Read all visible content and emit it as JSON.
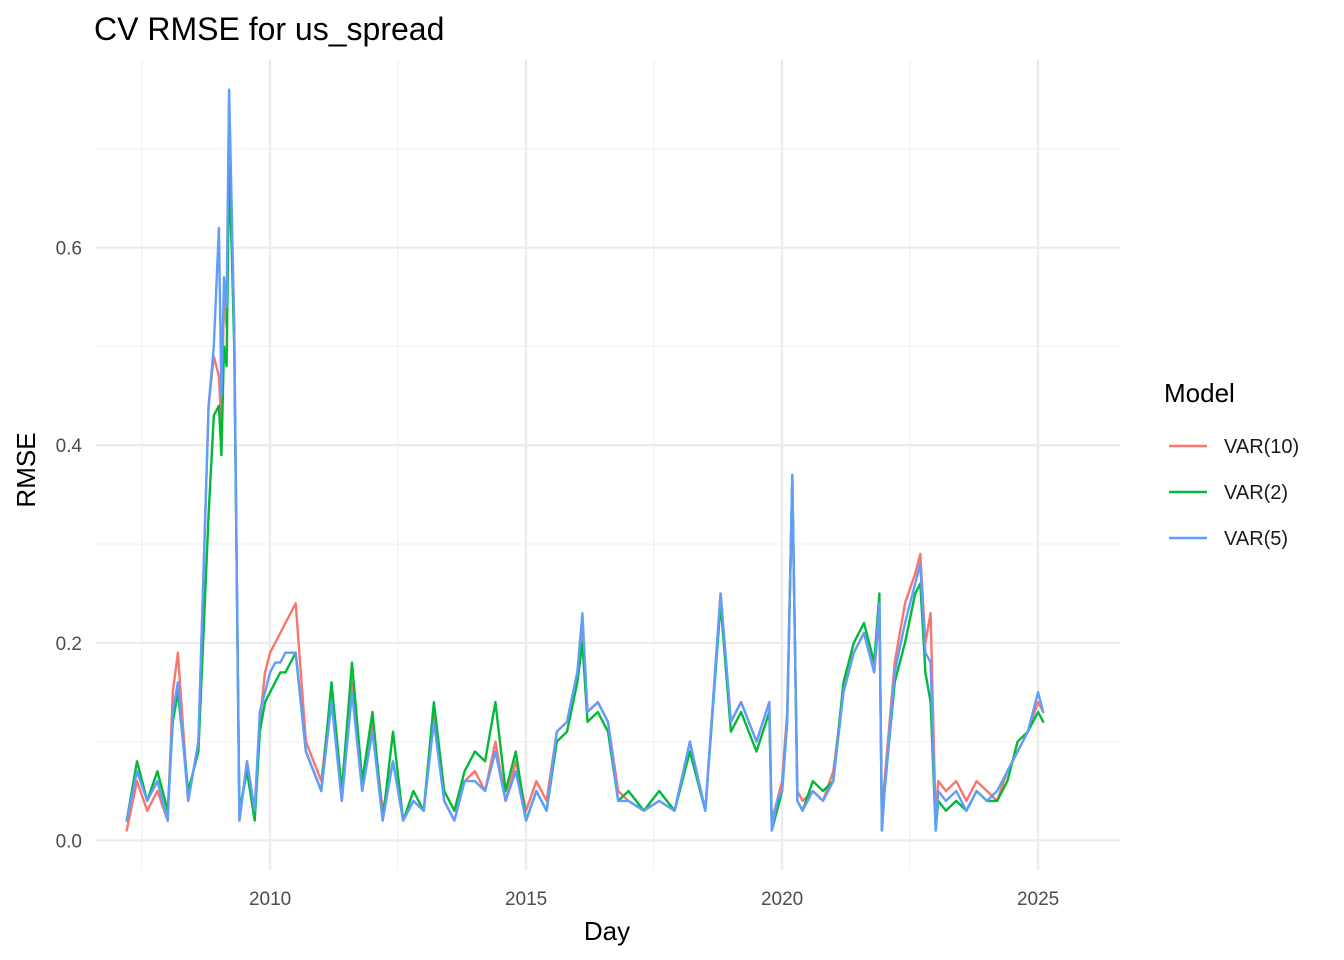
{
  "chart_data": {
    "type": "line",
    "title": "CV RMSE for us_spread",
    "xlabel": "Day",
    "ylabel": "RMSE",
    "xlim": [
      2006.6,
      2026.6
    ],
    "ylim": [
      -0.03,
      0.79
    ],
    "x_ticks": [
      {
        "value": 2010,
        "label": "2010"
      },
      {
        "value": 2015,
        "label": "2015"
      },
      {
        "value": 2020,
        "label": "2020"
      },
      {
        "value": 2025,
        "label": "2025"
      }
    ],
    "y_ticks": [
      {
        "value": 0.0,
        "label": "0.0"
      },
      {
        "value": 0.2,
        "label": "0.2"
      },
      {
        "value": 0.4,
        "label": "0.4"
      },
      {
        "value": 0.6,
        "label": "0.6"
      }
    ],
    "grid": true,
    "legend": {
      "title": "Model",
      "position": "right"
    },
    "series": [
      {
        "name": "VAR(10)",
        "color": "#F8766D",
        "x": [
          2007.2,
          2007.4,
          2007.6,
          2007.8,
          2008.0,
          2008.1,
          2008.2,
          2008.4,
          2008.6,
          2008.8,
          2008.9,
          2009.0,
          2009.05,
          2009.1,
          2009.15,
          2009.2,
          2009.25,
          2009.3,
          2009.4,
          2009.55,
          2009.7,
          2009.8,
          2009.9,
          2010.0,
          2010.1,
          2010.2,
          2010.3,
          2010.4,
          2010.5,
          2010.7,
          2011.0,
          2011.2,
          2011.4,
          2011.6,
          2011.8,
          2012.0,
          2012.2,
          2012.4,
          2012.6,
          2012.8,
          2013.0,
          2013.2,
          2013.4,
          2013.6,
          2013.8,
          2014.0,
          2014.2,
          2014.4,
          2014.6,
          2014.8,
          2015.0,
          2015.2,
          2015.4,
          2015.6,
          2015.8,
          2016.0,
          2016.1,
          2016.2,
          2016.4,
          2016.6,
          2016.8,
          2017.0,
          2017.3,
          2017.6,
          2017.9,
          2018.2,
          2018.5,
          2018.8,
          2019.0,
          2019.2,
          2019.5,
          2019.75,
          2019.8,
          2019.9,
          2020.0,
          2020.1,
          2020.2,
          2020.3,
          2020.4,
          2020.6,
          2020.8,
          2021.0,
          2021.2,
          2021.4,
          2021.6,
          2021.8,
          2021.9,
          2021.95,
          2022.0,
          2022.2,
          2022.4,
          2022.6,
          2022.7,
          2022.8,
          2022.9,
          2023.0,
          2023.05,
          2023.2,
          2023.4,
          2023.6,
          2023.8,
          2024.0,
          2024.2,
          2024.4,
          2024.6,
          2024.8,
          2025.0,
          2025.1
        ],
        "y": [
          0.01,
          0.06,
          0.03,
          0.05,
          0.02,
          0.15,
          0.19,
          0.04,
          0.1,
          0.44,
          0.49,
          0.47,
          0.42,
          0.55,
          0.52,
          0.75,
          0.62,
          0.52,
          0.02,
          0.08,
          0.03,
          0.12,
          0.17,
          0.19,
          0.2,
          0.21,
          0.22,
          0.23,
          0.24,
          0.1,
          0.06,
          0.15,
          0.04,
          0.16,
          0.05,
          0.12,
          0.03,
          0.08,
          0.02,
          0.04,
          0.03,
          0.13,
          0.04,
          0.02,
          0.06,
          0.07,
          0.05,
          0.1,
          0.04,
          0.08,
          0.03,
          0.06,
          0.04,
          0.11,
          0.12,
          0.17,
          0.21,
          0.13,
          0.14,
          0.12,
          0.05,
          0.04,
          0.03,
          0.04,
          0.03,
          0.1,
          0.03,
          0.25,
          0.12,
          0.14,
          0.1,
          0.14,
          0.02,
          0.04,
          0.06,
          0.13,
          0.36,
          0.05,
          0.04,
          0.05,
          0.04,
          0.07,
          0.15,
          0.19,
          0.21,
          0.17,
          0.23,
          0.02,
          0.06,
          0.18,
          0.24,
          0.27,
          0.29,
          0.2,
          0.23,
          0.02,
          0.06,
          0.05,
          0.06,
          0.04,
          0.06,
          0.05,
          0.04,
          0.07,
          0.09,
          0.11,
          0.14,
          0.13
        ]
      },
      {
        "name": "VAR(2)",
        "color": "#00BA38",
        "x": [
          2007.2,
          2007.4,
          2007.6,
          2007.8,
          2008.0,
          2008.1,
          2008.2,
          2008.4,
          2008.6,
          2008.8,
          2008.9,
          2009.0,
          2009.05,
          2009.1,
          2009.15,
          2009.2,
          2009.25,
          2009.3,
          2009.4,
          2009.55,
          2009.7,
          2009.8,
          2009.9,
          2010.0,
          2010.1,
          2010.2,
          2010.3,
          2010.4,
          2010.5,
          2010.7,
          2011.0,
          2011.2,
          2011.4,
          2011.6,
          2011.8,
          2012.0,
          2012.2,
          2012.4,
          2012.6,
          2012.8,
          2013.0,
          2013.2,
          2013.4,
          2013.6,
          2013.8,
          2014.0,
          2014.2,
          2014.4,
          2014.6,
          2014.8,
          2015.0,
          2015.2,
          2015.4,
          2015.6,
          2015.8,
          2016.0,
          2016.1,
          2016.2,
          2016.4,
          2016.6,
          2016.8,
          2017.0,
          2017.3,
          2017.6,
          2017.9,
          2018.2,
          2018.5,
          2018.8,
          2019.0,
          2019.2,
          2019.5,
          2019.75,
          2019.8,
          2019.9,
          2020.0,
          2020.1,
          2020.2,
          2020.3,
          2020.4,
          2020.6,
          2020.8,
          2021.0,
          2021.2,
          2021.4,
          2021.6,
          2021.8,
          2021.9,
          2021.95,
          2022.0,
          2022.2,
          2022.4,
          2022.6,
          2022.7,
          2022.8,
          2022.9,
          2023.0,
          2023.05,
          2023.2,
          2023.4,
          2023.6,
          2023.8,
          2024.0,
          2024.2,
          2024.4,
          2024.6,
          2024.8,
          2025.0,
          2025.1
        ],
        "y": [
          0.02,
          0.08,
          0.04,
          0.07,
          0.03,
          0.12,
          0.15,
          0.05,
          0.09,
          0.33,
          0.43,
          0.44,
          0.39,
          0.5,
          0.48,
          0.68,
          0.6,
          0.5,
          0.03,
          0.07,
          0.02,
          0.11,
          0.14,
          0.15,
          0.16,
          0.17,
          0.17,
          0.18,
          0.19,
          0.09,
          0.05,
          0.16,
          0.05,
          0.18,
          0.06,
          0.13,
          0.02,
          0.11,
          0.02,
          0.05,
          0.03,
          0.14,
          0.05,
          0.03,
          0.07,
          0.09,
          0.08,
          0.14,
          0.05,
          0.09,
          0.02,
          0.05,
          0.03,
          0.1,
          0.11,
          0.16,
          0.2,
          0.12,
          0.13,
          0.11,
          0.04,
          0.05,
          0.03,
          0.05,
          0.03,
          0.09,
          0.03,
          0.24,
          0.11,
          0.13,
          0.09,
          0.13,
          0.01,
          0.03,
          0.05,
          0.12,
          0.37,
          0.04,
          0.03,
          0.06,
          0.05,
          0.06,
          0.16,
          0.2,
          0.22,
          0.18,
          0.25,
          0.01,
          0.05,
          0.16,
          0.2,
          0.25,
          0.26,
          0.17,
          0.14,
          0.01,
          0.04,
          0.03,
          0.04,
          0.03,
          0.05,
          0.04,
          0.04,
          0.06,
          0.1,
          0.11,
          0.13,
          0.12
        ]
      },
      {
        "name": "VAR(5)",
        "color": "#619CFF",
        "x": [
          2007.2,
          2007.4,
          2007.6,
          2007.8,
          2008.0,
          2008.1,
          2008.2,
          2008.4,
          2008.6,
          2008.8,
          2008.9,
          2009.0,
          2009.05,
          2009.1,
          2009.15,
          2009.2,
          2009.25,
          2009.3,
          2009.4,
          2009.55,
          2009.7,
          2009.8,
          2009.9,
          2010.0,
          2010.1,
          2010.2,
          2010.3,
          2010.4,
          2010.5,
          2010.7,
          2011.0,
          2011.2,
          2011.4,
          2011.6,
          2011.8,
          2012.0,
          2012.2,
          2012.4,
          2012.6,
          2012.8,
          2013.0,
          2013.2,
          2013.4,
          2013.6,
          2013.8,
          2014.0,
          2014.2,
          2014.4,
          2014.6,
          2014.8,
          2015.0,
          2015.2,
          2015.4,
          2015.6,
          2015.8,
          2016.0,
          2016.1,
          2016.2,
          2016.4,
          2016.6,
          2016.8,
          2017.0,
          2017.3,
          2017.6,
          2017.9,
          2018.2,
          2018.5,
          2018.8,
          2019.0,
          2019.2,
          2019.5,
          2019.75,
          2019.8,
          2019.9,
          2020.0,
          2020.1,
          2020.2,
          2020.3,
          2020.4,
          2020.6,
          2020.8,
          2021.0,
          2021.2,
          2021.4,
          2021.6,
          2021.8,
          2021.9,
          2021.95,
          2022.0,
          2022.2,
          2022.4,
          2022.6,
          2022.7,
          2022.8,
          2022.9,
          2023.0,
          2023.05,
          2023.2,
          2023.4,
          2023.6,
          2023.8,
          2024.0,
          2024.2,
          2024.4,
          2024.6,
          2024.8,
          2025.0,
          2025.1
        ],
        "y": [
          0.02,
          0.07,
          0.04,
          0.06,
          0.02,
          0.13,
          0.16,
          0.04,
          0.1,
          0.44,
          0.5,
          0.62,
          0.45,
          0.57,
          0.54,
          0.76,
          0.64,
          0.52,
          0.02,
          0.08,
          0.03,
          0.13,
          0.15,
          0.17,
          0.18,
          0.18,
          0.19,
          0.19,
          0.19,
          0.09,
          0.05,
          0.14,
          0.04,
          0.15,
          0.05,
          0.11,
          0.02,
          0.08,
          0.02,
          0.04,
          0.03,
          0.12,
          0.04,
          0.02,
          0.06,
          0.06,
          0.05,
          0.09,
          0.04,
          0.07,
          0.02,
          0.05,
          0.03,
          0.11,
          0.12,
          0.17,
          0.23,
          0.13,
          0.14,
          0.12,
          0.04,
          0.04,
          0.03,
          0.04,
          0.03,
          0.1,
          0.03,
          0.25,
          0.12,
          0.14,
          0.1,
          0.14,
          0.01,
          0.04,
          0.05,
          0.12,
          0.37,
          0.04,
          0.03,
          0.05,
          0.04,
          0.06,
          0.15,
          0.19,
          0.21,
          0.17,
          0.24,
          0.01,
          0.05,
          0.17,
          0.22,
          0.26,
          0.28,
          0.19,
          0.18,
          0.01,
          0.05,
          0.04,
          0.05,
          0.03,
          0.05,
          0.04,
          0.05,
          0.07,
          0.09,
          0.11,
          0.15,
          0.13
        ]
      }
    ]
  }
}
